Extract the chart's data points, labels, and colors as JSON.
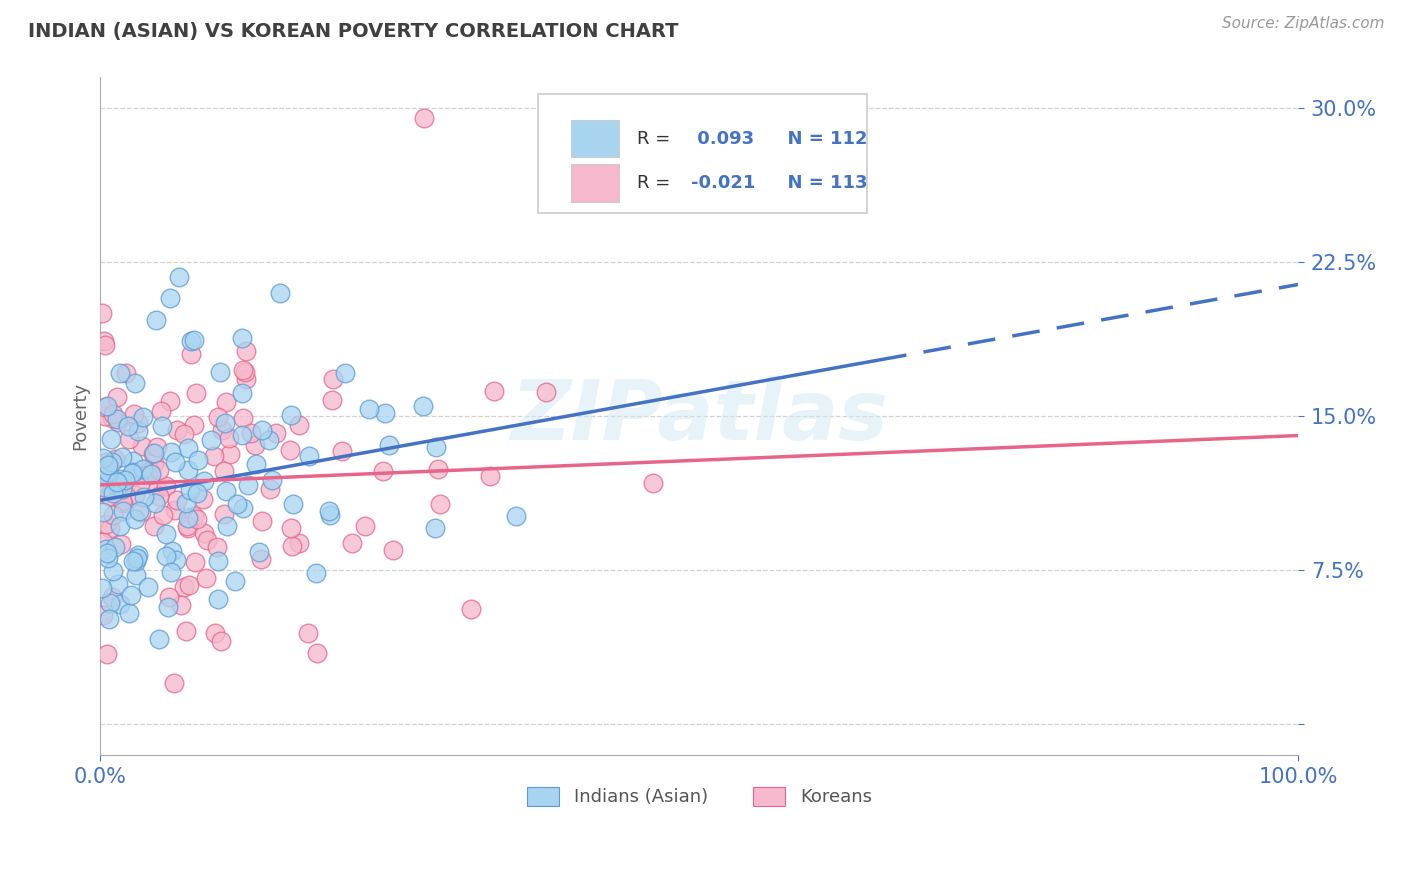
{
  "title": "INDIAN (ASIAN) VS KOREAN POVERTY CORRELATION CHART",
  "source": "Source: ZipAtlas.com",
  "ylabel": "Poverty",
  "legend_indian_r": "R =  0.093",
  "legend_indian_n": "N = 112",
  "legend_korean_r": "R = -0.021",
  "legend_korean_n": "N = 113",
  "indian_color": "#a8d4f0",
  "korean_color": "#f5b8cc",
  "indian_edge_color": "#5b9bd5",
  "korean_edge_color": "#e8648a",
  "indian_line_color": "#4472c4",
  "korean_line_color": "#e8648a",
  "watermark": "ZIPatlas",
  "background": "#ffffff",
  "grid_color": "#c8c8c8",
  "axis_label_color": "#4472c4",
  "title_color": "#404040",
  "legend_r_color": "#333333",
  "legend_val_color": "#4472c4",
  "seed": 42,
  "n_indian": 112,
  "n_korean": 113,
  "indian_r": 0.093,
  "korean_r": -0.021,
  "xmin": 0.0,
  "xmax": 1.0,
  "ymin": -0.015,
  "ymax": 0.315,
  "yticks": [
    0.0,
    0.075,
    0.15,
    0.225,
    0.3
  ],
  "ytick_labels": [
    "",
    "7.5%",
    "15.0%",
    "22.5%",
    "30.0%"
  ]
}
